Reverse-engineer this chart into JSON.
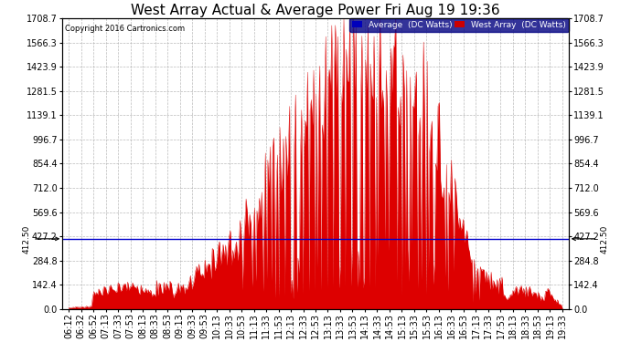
{
  "title": "West Array Actual & Average Power Fri Aug 19 19:36",
  "copyright": "Copyright 2016 Cartronics.com",
  "legend_labels": [
    "Average  (DC Watts)",
    "West Array  (DC Watts)"
  ],
  "legend_colors": [
    "#0000bb",
    "#cc0000"
  ],
  "avg_value": 412.5,
  "y_max": 1708.7,
  "y_ticks": [
    0.0,
    142.4,
    284.8,
    427.2,
    569.6,
    712.0,
    854.4,
    996.7,
    1139.1,
    1281.5,
    1423.9,
    1566.3,
    1708.7
  ],
  "background_color": "#ffffff",
  "plot_bg_color": "#ffffff",
  "grid_color": "#aaaaaa",
  "fill_color": "#dd0000",
  "avg_line_color": "#0000cc",
  "title_fontsize": 11,
  "tick_fontsize": 7,
  "x_labels": [
    "06:12",
    "06:32",
    "06:52",
    "07:13",
    "07:33",
    "07:53",
    "08:13",
    "08:33",
    "08:53",
    "09:13",
    "09:33",
    "09:53",
    "10:13",
    "10:33",
    "10:53",
    "11:13",
    "11:33",
    "11:53",
    "12:13",
    "12:33",
    "12:53",
    "13:13",
    "13:33",
    "13:53",
    "14:13",
    "14:33",
    "14:53",
    "15:13",
    "15:33",
    "15:53",
    "16:13",
    "16:33",
    "16:53",
    "17:13",
    "17:33",
    "17:53",
    "18:13",
    "18:33",
    "18:53",
    "19:13",
    "19:33"
  ],
  "envelope": [
    8,
    12,
    18,
    30,
    80,
    130,
    140,
    155,
    140,
    120,
    200,
    260,
    320,
    380,
    460,
    560,
    700,
    820,
    950,
    1050,
    1150,
    1280,
    1380,
    1420,
    1400,
    1380,
    1350,
    1320,
    1280,
    1100,
    950,
    800,
    500,
    300,
    200,
    160,
    120,
    100,
    100,
    90,
    5
  ]
}
